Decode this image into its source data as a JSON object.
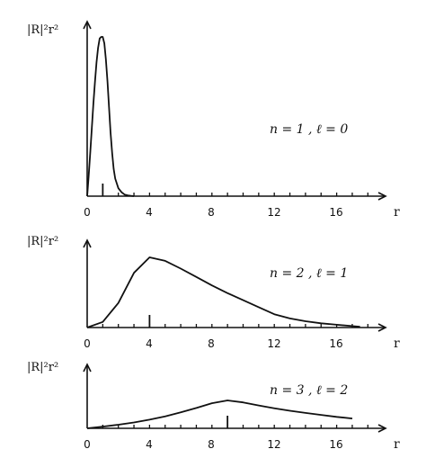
{
  "chart_data": [
    {
      "type": "line",
      "ylabel": "|R|²r²",
      "xlabel": "r",
      "annotation": "n = 1 , ℓ = 0",
      "x_ticks": [
        "0",
        "4",
        "8",
        "12",
        "16"
      ],
      "xlim": [
        0,
        18
      ],
      "marker_x": 1,
      "series": [
        {
          "x": [
            0,
            0.1,
            0.2,
            0.3,
            0.4,
            0.5,
            0.6,
            0.7,
            0.8,
            0.9,
            1.0,
            1.1,
            1.2,
            1.3,
            1.4,
            1.5,
            1.6,
            1.7,
            1.8,
            2.0,
            2.2,
            2.4,
            2.6,
            2.8,
            3.0
          ],
          "y": [
            0,
            0.13,
            0.28,
            0.43,
            0.58,
            0.72,
            0.84,
            0.93,
            0.99,
            1.0,
            1.0,
            0.96,
            0.86,
            0.72,
            0.56,
            0.4,
            0.27,
            0.17,
            0.11,
            0.05,
            0.025,
            0.01,
            0.005,
            0.002,
            0
          ]
        }
      ]
    },
    {
      "type": "line",
      "ylabel": "|R|²r²",
      "xlabel": "r",
      "annotation": "n = 2 , ℓ = 1",
      "x_ticks": [
        "0",
        "4",
        "8",
        "12",
        "16"
      ],
      "xlim": [
        0,
        18
      ],
      "marker_x": 4,
      "series": [
        {
          "x": [
            0,
            1,
            2,
            3,
            4,
            5,
            6,
            7,
            8,
            9,
            10,
            11,
            12,
            13,
            14,
            15,
            16,
            17,
            17.5
          ],
          "y": [
            0,
            0.08,
            0.35,
            0.78,
            1.0,
            0.95,
            0.84,
            0.72,
            0.6,
            0.49,
            0.39,
            0.29,
            0.19,
            0.13,
            0.09,
            0.06,
            0.04,
            0.02,
            0.01
          ]
        }
      ]
    },
    {
      "type": "line",
      "ylabel": "|R|²r²",
      "xlabel": "r",
      "annotation": "n = 3 , ℓ = 2",
      "x_ticks": [
        "0",
        "4",
        "8",
        "12",
        "16"
      ],
      "xlim": [
        0,
        18
      ],
      "marker_x": 9,
      "series": [
        {
          "x": [
            0,
            1,
            2,
            3,
            4,
            5,
            6,
            7,
            8,
            9,
            10,
            11,
            12,
            13,
            14,
            15,
            16,
            17
          ],
          "y": [
            0,
            0.06,
            0.13,
            0.21,
            0.31,
            0.43,
            0.57,
            0.73,
            0.9,
            1.0,
            0.93,
            0.82,
            0.72,
            0.63,
            0.55,
            0.48,
            0.41,
            0.35
          ]
        }
      ]
    }
  ]
}
